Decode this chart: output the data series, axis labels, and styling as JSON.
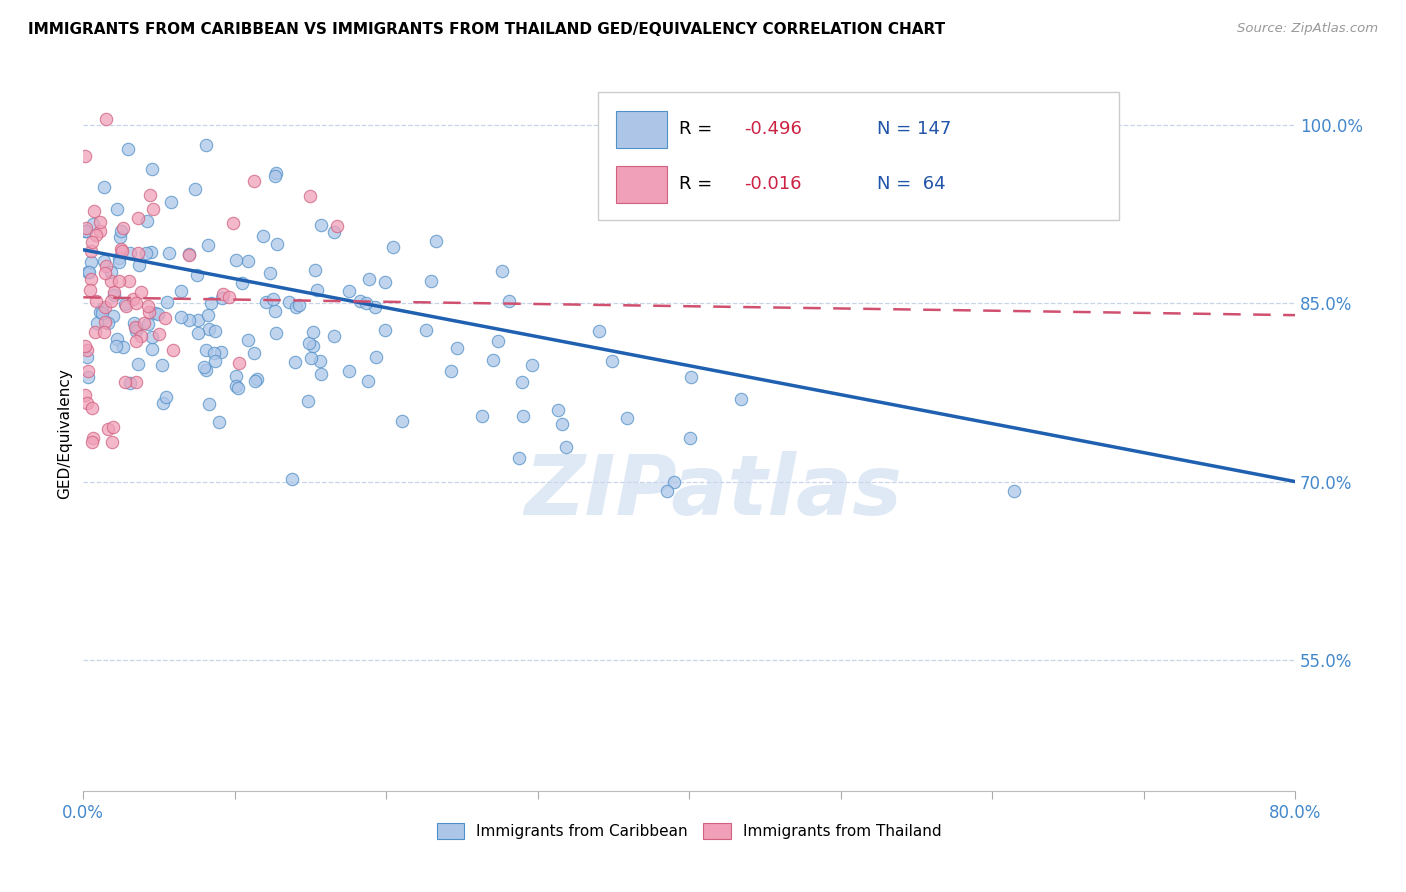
{
  "title": "IMMIGRANTS FROM CARIBBEAN VS IMMIGRANTS FROM THAILAND GED/EQUIVALENCY CORRELATION CHART",
  "source": "Source: ZipAtlas.com",
  "ylabel": "GED/Equivalency",
  "ytick_labels": [
    "55.0%",
    "70.0%",
    "85.0%",
    "100.0%"
  ],
  "ytick_values": [
    0.55,
    0.7,
    0.85,
    1.0
  ],
  "xlim": [
    0.0,
    0.8
  ],
  "ylim": [
    0.44,
    1.04
  ],
  "xtick_positions": [
    0.0,
    0.1,
    0.2,
    0.3,
    0.4,
    0.5,
    0.6,
    0.7,
    0.8
  ],
  "legend_blue_label": "Immigrants from Caribbean",
  "legend_pink_label": "Immigrants from Thailand",
  "blue_line_color": "#2060b0",
  "pink_line_color": "#d05070",
  "blue_scatter_face": "#adc6e8",
  "blue_scatter_edge": "#5090c8",
  "pink_scatter_face": "#f0a0b8",
  "pink_scatter_edge": "#d06080",
  "watermark": "ZIPatlas",
  "blue_R": -0.496,
  "blue_N": 147,
  "pink_R": -0.016,
  "pink_N": 64,
  "blue_line_y0": 0.895,
  "blue_line_y1": 0.7,
  "pink_line_y0": 0.855,
  "pink_line_y1": 0.84,
  "grid_color": "#c8d4e8",
  "grid_style": "--",
  "title_fontsize": 11,
  "tick_label_color": "#4488cc",
  "legend_text_color": "#2255aa",
  "legend_R_color": "#cc2244"
}
